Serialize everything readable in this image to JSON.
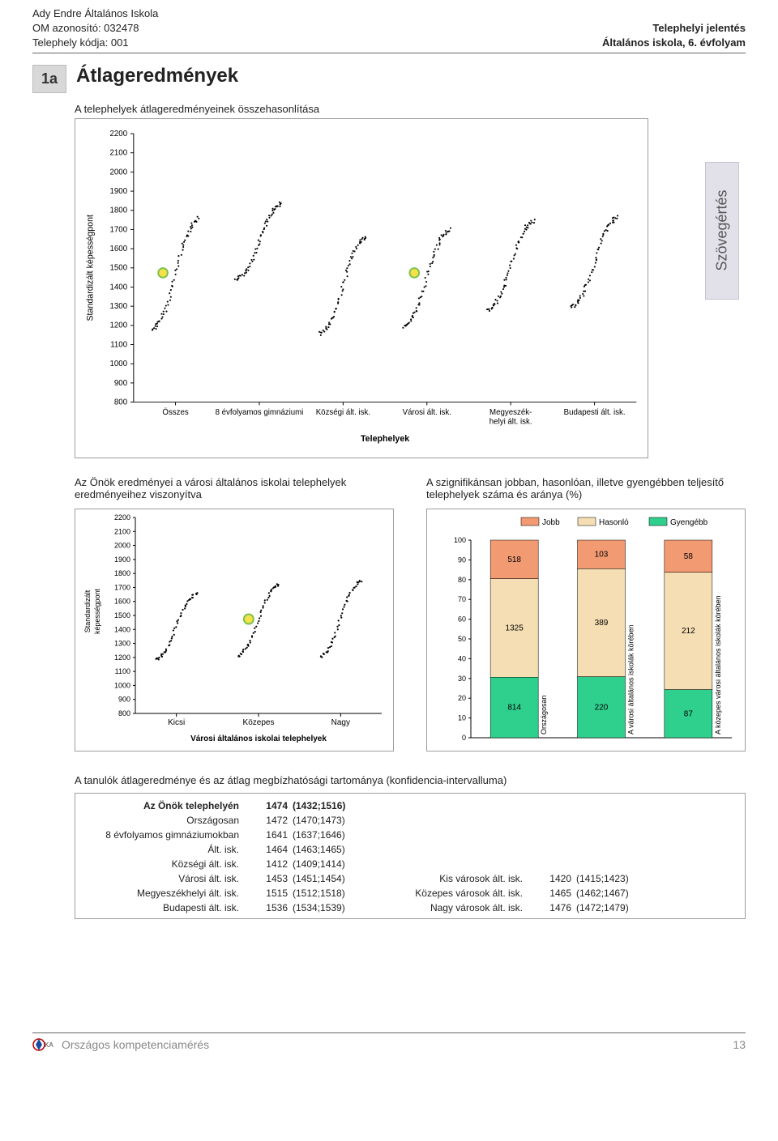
{
  "header": {
    "left1": "Ady Endre Általános Iskola",
    "left2": "OM azonosító: 032478",
    "left3": "Telephely kódja: 001",
    "right1": "Telephelyi jelentés",
    "right2": "Általános iskola, 6. évfolyam"
  },
  "badge": "1a",
  "title": "Átlageredmények",
  "side_tab": "Szövegértés",
  "chart1": {
    "subtitle": "A telephelyek átlageredményeinek összehasonlítása",
    "type": "strip-scatter",
    "y_label": "Standardizált képességpont",
    "y_ticks": [
      800,
      900,
      1000,
      1100,
      1200,
      1300,
      1400,
      1500,
      1600,
      1700,
      1800,
      1900,
      2000,
      2100,
      2200
    ],
    "ylim": [
      800,
      2200
    ],
    "x_label": "Telephelyek",
    "categories": [
      "Összes",
      "8 évfolyamos gimnáziumi",
      "Községi ált. isk.",
      "Városi ált. isk.",
      "Megyeszék-helyi ált. isk.",
      "Budapesti ált. isk."
    ],
    "highlight_indices": [
      0,
      3
    ],
    "highlight_y": [
      1474,
      1474
    ],
    "point_color": "#000000",
    "highlight_stroke": "#7cc24a",
    "highlight_fill": "#f6e14b",
    "grid_color": "#c8c8c8"
  },
  "chart2": {
    "heading": "Az Önök eredményei a városi általános iskolai telephelyek eredményeihez viszonyítva",
    "type": "strip-scatter",
    "y_label_1": "Standardizált",
    "y_label_2": "képességpont",
    "y_ticks": [
      800,
      900,
      1000,
      1100,
      1200,
      1300,
      1400,
      1500,
      1600,
      1700,
      1800,
      1900,
      2000,
      2100,
      2200
    ],
    "ylim": [
      800,
      2200
    ],
    "x_label": "Városi általános iskolai telephelyek",
    "categories": [
      "Kicsi",
      "Közepes",
      "Nagy"
    ],
    "highlight_indices": [
      1
    ],
    "highlight_y": [
      1474
    ],
    "point_color": "#000000",
    "highlight_stroke": "#7cc24a",
    "highlight_fill": "#f6e14b",
    "grid_color": "#c8c8c8"
  },
  "chart3": {
    "heading": "A szignifikánsan jobban, hasonlóan, illetve gyengébben teljesítő telephelyek száma és aránya (%)",
    "type": "stacked-bar",
    "legend": [
      {
        "label": "Jobb",
        "color": "#f29a72"
      },
      {
        "label": "Hasonló",
        "color": "#f5deb3"
      },
      {
        "label": "Gyengébb",
        "color": "#2fcf8e"
      }
    ],
    "y_ticks": [
      0,
      10,
      20,
      30,
      40,
      50,
      60,
      70,
      80,
      90,
      100
    ],
    "ylim": [
      0,
      100
    ],
    "categories": [
      "Országosan",
      "A városi általános iskolák körében",
      "A közepes városi általános iskolák körében"
    ],
    "series": {
      "jobb": [
        518,
        103,
        58
      ],
      "hasonlo": [
        1325,
        389,
        212
      ],
      "gyengebb": [
        814,
        220,
        87
      ]
    },
    "background": "#ffffff",
    "grid_color": "#c8c8c8"
  },
  "conf_table": {
    "title": "A tanulók átlageredménye és az átlag megbízhatósági tartománya (konfidencia-intervalluma)",
    "rows": [
      {
        "label": "Az Önök telephelyén",
        "mean": "1474",
        "ci": "(1432;1516)",
        "bold": true
      },
      {
        "label": "Országosan",
        "mean": "1472",
        "ci": "(1470;1473)"
      },
      {
        "label": "8 évfolyamos gimnáziumokban",
        "mean": "1641",
        "ci": "(1637;1646)"
      },
      {
        "label": "Ált. isk.",
        "mean": "1464",
        "ci": "(1463;1465)"
      },
      {
        "label": "Községi ált. isk.",
        "mean": "1412",
        "ci": "(1409;1414)"
      },
      {
        "label": "Városi ált. isk.",
        "mean": "1453",
        "ci": "(1451;1454)",
        "label2": "Kis városok ált. isk.",
        "mean2": "1420",
        "ci2": "(1415;1423)"
      },
      {
        "label": "Megyeszékhelyi ált. isk.",
        "mean": "1515",
        "ci": "(1512;1518)",
        "label2": "Közepes városok ált. isk.",
        "mean2": "1465",
        "ci2": "(1462;1467)"
      },
      {
        "label": "Budapesti ált. isk.",
        "mean": "1536",
        "ci": "(1534;1539)",
        "label2": "Nagy városok ált. isk.",
        "mean2": "1476",
        "ci2": "(1472;1479)"
      }
    ]
  },
  "footer": {
    "left": "Országos kompetenciamérés",
    "page": "13"
  }
}
